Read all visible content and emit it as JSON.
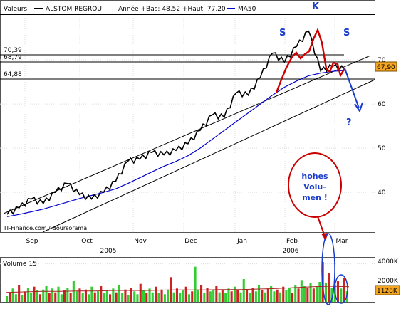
{
  "header": {
    "label_prefix": "Valeurs",
    "stock_name": "ALSTOM REGROU",
    "year_stats": "Année +Bas: 48,52 +Haut: 77,20",
    "ma_label": "MA50",
    "price_color": "#000000",
    "ma_color": "#0000cc"
  },
  "watermark": "IT-Finance.com / Boursorama",
  "level_lines": [
    "70,39",
    "68,79",
    "64,88"
  ],
  "last_price": "67,90",
  "annotations": {
    "peak_k": "K",
    "shoulder_left": "S",
    "shoulder_right": "S",
    "question": "?",
    "volume_note": [
      "hohes",
      "Volu-",
      "men !"
    ]
  },
  "colors": {
    "price": "#000000",
    "ma": "#0000cc",
    "annotation_red": "#cc0000",
    "annotation_blue": "#1a3ccc",
    "last_price_badge": "#f5a623",
    "vol_up": "#33cc33",
    "vol_down": "#cc2222"
  },
  "chart_data": [
    {
      "type": "line",
      "title": "ALSTOM REGROU",
      "x_ticks": [
        "Sep",
        "Oct",
        "Nov",
        "Dec",
        "Jan",
        "Feb",
        "Mar"
      ],
      "year_labels": [
        "2005",
        "2006"
      ],
      "y_ticks": [
        40,
        50,
        60,
        70
      ],
      "ylim": [
        31,
        80
      ],
      "grid": true,
      "legend": "top-left",
      "series": [
        {
          "name": "ALSTOM REGROU",
          "weekly_close": [
            35.0,
            36.5,
            38.5,
            37.5,
            40.0,
            42.0,
            39.5,
            38.5,
            40.0,
            42.5,
            47.0,
            47.5,
            49.0,
            48.5,
            49.5,
            51.0,
            54.0,
            57.5,
            57.0,
            62.5,
            62.0,
            66.0,
            71.5,
            69.5,
            73.0,
            76.5,
            67.5,
            68.5,
            67.9
          ]
        },
        {
          "name": "MA50",
          "weekly_close": [
            34.5,
            35.0,
            35.6,
            36.2,
            37.0,
            37.8,
            38.6,
            39.3,
            40.0,
            40.8,
            42.0,
            43.3,
            44.6,
            45.9,
            47.0,
            48.3,
            50.0,
            52.0,
            54.0,
            56.0,
            58.0,
            60.0,
            62.0,
            63.8,
            65.2,
            66.4,
            67.0,
            67.4,
            67.6
          ]
        }
      ],
      "levels": [
        70.39,
        68.79,
        64.88
      ]
    },
    {
      "type": "bar",
      "title": "Volume 15",
      "y_ticks": [
        "4000K",
        "2000K"
      ],
      "ylim": [
        0,
        4500
      ],
      "last_value": "1128K",
      "values": [
        600,
        900,
        1400,
        800,
        1800,
        700,
        1100,
        1500,
        900,
        1600,
        1200,
        800,
        1300,
        1700,
        900,
        1400,
        1000,
        1600,
        800,
        1200,
        1500,
        900,
        2200,
        1100,
        1400,
        900,
        1300,
        800,
        1600,
        1000,
        1100,
        1700,
        900,
        1200,
        800,
        1400,
        1000,
        1800,
        900,
        1300,
        700,
        1500,
        1100,
        800,
        1900,
        1200,
        900,
        1400,
        1000,
        1600,
        900,
        1300,
        800,
        1200,
        2600,
        1000,
        1400,
        900,
        1200,
        1600,
        800,
        1100,
        3700,
        1300,
        1800,
        900,
        1500,
        1100,
        1200,
        1700,
        1000,
        1300,
        900,
        1400,
        1100,
        1600,
        1200,
        1000,
        2400,
        1300,
        900,
        1500,
        1100,
        1800,
        1200,
        1000,
        1400,
        1700,
        1100,
        1300,
        1000,
        1600,
        1200,
        1500,
        900,
        1800,
        1400,
        2300,
        1700,
        1500,
        2000,
        1400,
        1700,
        2100,
        4200,
        2000,
        3000,
        1500,
        1800,
        2200,
        1400,
        2500,
        1128
      ],
      "ma_line": [
        1000,
        1050,
        1100,
        1100,
        1150,
        1150,
        1200,
        1200,
        1200,
        1250,
        1250,
        1250,
        1300,
        1300,
        1350,
        1400,
        1500,
        1600,
        1650,
        1600
      ]
    }
  ]
}
